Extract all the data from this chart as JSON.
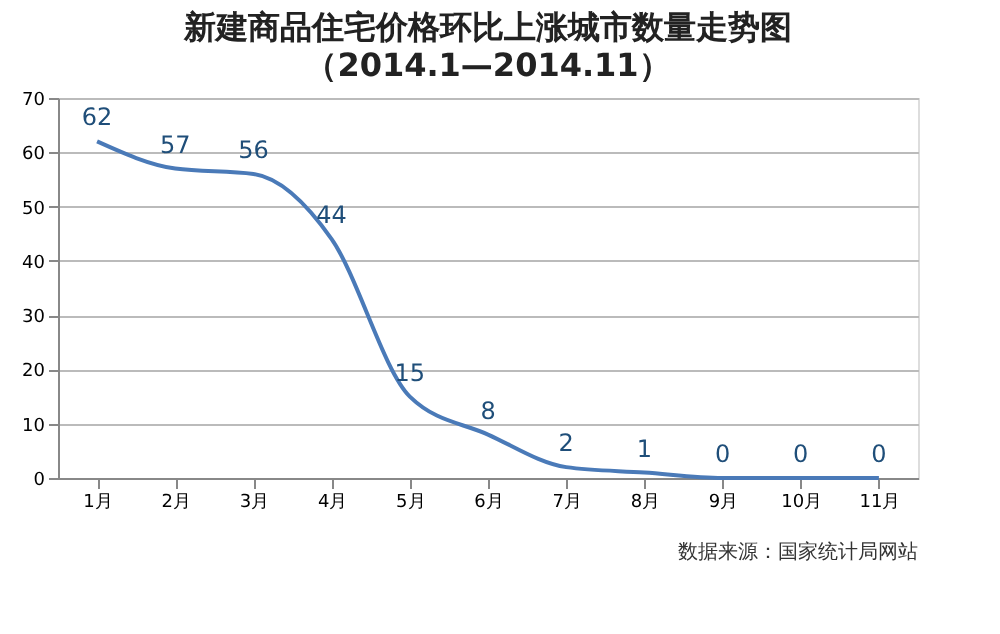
{
  "chart_data": {
    "type": "line",
    "title": "新建商品住宅价格环比上涨城市数量走势图",
    "subtitle": "（2014.1—2014.11）",
    "categories": [
      "1月",
      "2月",
      "3月",
      "4月",
      "5月",
      "6月",
      "7月",
      "8月",
      "9月",
      "10月",
      "11月"
    ],
    "series": [
      {
        "color": "#4a7ab8",
        "values": [
          62,
          57,
          56,
          44,
          15,
          8,
          2,
          1,
          0,
          0,
          0
        ]
      }
    ],
    "ylim": [
      0,
      70
    ],
    "yticks": [
      0,
      10,
      20,
      30,
      40,
      50,
      60,
      70
    ],
    "grid": "y",
    "data_labels": true,
    "legend": false,
    "marker": "none",
    "line_style": "solid",
    "annotations": [
      "数据来源：国家统计局网站"
    ]
  }
}
